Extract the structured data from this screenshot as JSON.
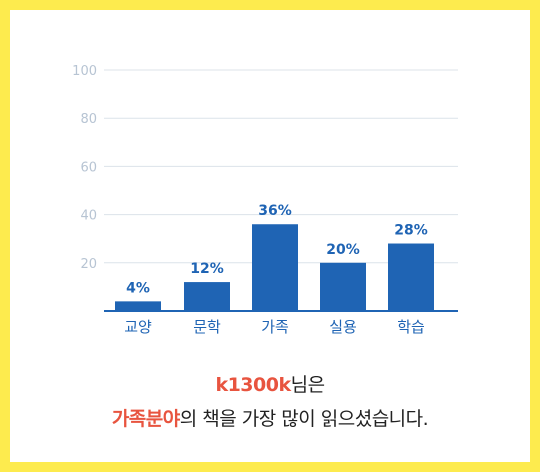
{
  "colors": {
    "frame": "#fdeb4e",
    "bar": "#1f64b4",
    "axis_text": "#1f64b4",
    "tick_text": "#b7c4d3",
    "grid": "#dce3ea",
    "highlight": "#e8543f"
  },
  "chart_data": {
    "type": "bar",
    "categories": [
      "교양",
      "문학",
      "가족",
      "실용",
      "학습"
    ],
    "values": [
      4,
      12,
      36,
      20,
      28
    ],
    "data_labels": [
      "4%",
      "12%",
      "36%",
      "20%",
      "28%"
    ],
    "yticks": [
      20,
      40,
      60,
      80,
      100
    ],
    "ylim": [
      0,
      100
    ],
    "grid": true,
    "title": "",
    "xlabel": "",
    "ylabel": ""
  },
  "caption": {
    "user_name": "k1300k",
    "line1_suffix": "님은",
    "genre": "가족분야",
    "line2_suffix": "의 책을 가장 많이 읽으셨습니다."
  }
}
